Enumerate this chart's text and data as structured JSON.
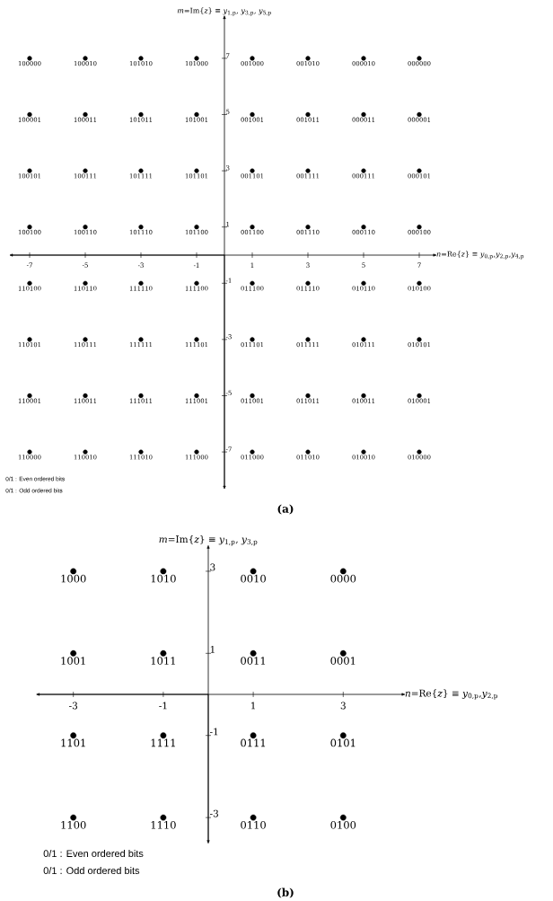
{
  "chart_data": [
    {
      "type": "scatter",
      "title": "(a)",
      "xlabel": "*n*=Re{*z*} ≡ *y*$_{0,p}$,*y*$_{2,p}$,*y*$_{4,p}$",
      "ylabel": "*m*=Im{*z*} ≡ *y*$_{1,p}$, *y*$_{3,p}$, *y*$_{5,p}$",
      "color": "#000000",
      "marker": "circle",
      "xlim": [
        -7.6,
        7.5
      ],
      "ylim": [
        -8.2,
        8.4
      ],
      "xticks": [
        -7,
        -5,
        -3,
        -1,
        1,
        3,
        5,
        7
      ],
      "yticks": [
        -7,
        -5,
        -3,
        -1,
        1,
        3,
        5,
        7
      ],
      "x": [
        -7,
        -5,
        -3,
        -1,
        1,
        3,
        5,
        7,
        -7,
        -5,
        -3,
        -1,
        1,
        3,
        5,
        7,
        -7,
        -5,
        -3,
        -1,
        1,
        3,
        5,
        7,
        -7,
        -5,
        -3,
        -1,
        1,
        3,
        5,
        7,
        -7,
        -5,
        -3,
        -1,
        1,
        3,
        5,
        7,
        -7,
        -5,
        -3,
        -1,
        1,
        3,
        5,
        7,
        -7,
        -5,
        -3,
        -1,
        1,
        3,
        5,
        7,
        -7,
        -5,
        -3,
        -1,
        1,
        3,
        5,
        7
      ],
      "values": [
        7,
        7,
        7,
        7,
        7,
        7,
        7,
        7,
        5,
        5,
        5,
        5,
        5,
        5,
        5,
        5,
        3,
        3,
        3,
        3,
        3,
        3,
        3,
        3,
        1,
        1,
        1,
        1,
        1,
        1,
        1,
        1,
        -1,
        -1,
        -1,
        -1,
        -1,
        -1,
        -1,
        -1,
        -3,
        -3,
        -3,
        -3,
        -3,
        -3,
        -3,
        -3,
        -5,
        -5,
        -5,
        -5,
        -5,
        -5,
        -5,
        -5,
        -7,
        -7,
        -7,
        -7,
        -7,
        -7,
        -7,
        -7
      ],
      "annotations": [
        {
          "text": "100000",
          "x": -7,
          "y": 7
        },
        {
          "text": "100010",
          "x": -5,
          "y": 7
        },
        {
          "text": "101010",
          "x": -3,
          "y": 7
        },
        {
          "text": "101000",
          "x": -1,
          "y": 7
        },
        {
          "text": "001000",
          "x": 1,
          "y": 7
        },
        {
          "text": "001010",
          "x": 3,
          "y": 7
        },
        {
          "text": "000010",
          "x": 5,
          "y": 7
        },
        {
          "text": "000000",
          "x": 7,
          "y": 7
        },
        {
          "text": "100001",
          "x": -7,
          "y": 5
        },
        {
          "text": "100011",
          "x": -5,
          "y": 5
        },
        {
          "text": "101011",
          "x": -3,
          "y": 5
        },
        {
          "text": "101001",
          "x": -1,
          "y": 5
        },
        {
          "text": "001001",
          "x": 1,
          "y": 5
        },
        {
          "text": "001011",
          "x": 3,
          "y": 5
        },
        {
          "text": "000011",
          "x": 5,
          "y": 5
        },
        {
          "text": "000001",
          "x": 7,
          "y": 5
        },
        {
          "text": "100101",
          "x": -7,
          "y": 3
        },
        {
          "text": "100111",
          "x": -5,
          "y": 3
        },
        {
          "text": "101111",
          "x": -3,
          "y": 3
        },
        {
          "text": "101101",
          "x": -1,
          "y": 3
        },
        {
          "text": "001101",
          "x": 1,
          "y": 3
        },
        {
          "text": "001111",
          "x": 3,
          "y": 3
        },
        {
          "text": "000111",
          "x": 5,
          "y": 3
        },
        {
          "text": "000101",
          "x": 7,
          "y": 3
        },
        {
          "text": "100100",
          "x": -7,
          "y": 1
        },
        {
          "text": "100110",
          "x": -5,
          "y": 1
        },
        {
          "text": "101110",
          "x": -3,
          "y": 1
        },
        {
          "text": "101100",
          "x": -1,
          "y": 1
        },
        {
          "text": "001100",
          "x": 1,
          "y": 1
        },
        {
          "text": "001110",
          "x": 3,
          "y": 1
        },
        {
          "text": "000110",
          "x": 5,
          "y": 1
        },
        {
          "text": "000100",
          "x": 7,
          "y": 1
        },
        {
          "text": "110100",
          "x": -7,
          "y": -1
        },
        {
          "text": "110110",
          "x": -5,
          "y": -1
        },
        {
          "text": "111110",
          "x": -3,
          "y": -1
        },
        {
          "text": "111100",
          "x": -1,
          "y": -1
        },
        {
          "text": "011100",
          "x": 1,
          "y": -1
        },
        {
          "text": "011110",
          "x": 3,
          "y": -1
        },
        {
          "text": "010110",
          "x": 5,
          "y": -1
        },
        {
          "text": "010100",
          "x": 7,
          "y": -1
        },
        {
          "text": "110101",
          "x": -7,
          "y": -3
        },
        {
          "text": "110111",
          "x": -5,
          "y": -3
        },
        {
          "text": "111111",
          "x": -3,
          "y": -3
        },
        {
          "text": "111101",
          "x": -1,
          "y": -3
        },
        {
          "text": "011101",
          "x": 1,
          "y": -3
        },
        {
          "text": "011111",
          "x": 3,
          "y": -3
        },
        {
          "text": "010111",
          "x": 5,
          "y": -3
        },
        {
          "text": "010101",
          "x": 7,
          "y": -3
        },
        {
          "text": "110001",
          "x": -7,
          "y": -5
        },
        {
          "text": "110011",
          "x": -5,
          "y": -5
        },
        {
          "text": "111011",
          "x": -3,
          "y": -5
        },
        {
          "text": "111001",
          "x": -1,
          "y": -5
        },
        {
          "text": "011001",
          "x": 1,
          "y": -5
        },
        {
          "text": "011011",
          "x": 3,
          "y": -5
        },
        {
          "text": "010011",
          "x": 5,
          "y": -5
        },
        {
          "text": "010001",
          "x": 7,
          "y": -5
        },
        {
          "text": "110000",
          "x": -7,
          "y": -7
        },
        {
          "text": "110010",
          "x": -5,
          "y": -7
        },
        {
          "text": "111010",
          "x": -3,
          "y": -7
        },
        {
          "text": "111000",
          "x": -1,
          "y": -7
        },
        {
          "text": "011000",
          "x": 1,
          "y": -7
        },
        {
          "text": "011010",
          "x": 3,
          "y": -7
        },
        {
          "text": "010010",
          "x": 5,
          "y": -7
        },
        {
          "text": "010000",
          "x": 7,
          "y": -7
        },
        "0/1 : Even ordered bits",
        "0/1 : Odd ordered bits"
      ]
    },
    {
      "type": "scatter",
      "title": "(b)",
      "xlabel": "*n*=Re{*z*} ≡ *y*$_{0,p}$,*y*$_{2,p}$",
      "ylabel": "*m*=Im{*z*} ≡ *y*$_{1,p}$, *y*$_{3,p}$",
      "color": "#000000",
      "marker": "circle",
      "xlim": [
        -3.75,
        4.3
      ],
      "ylim": [
        -3.55,
        3.55
      ],
      "xticks": [
        -3,
        -1,
        1,
        3
      ],
      "yticks": [
        -3,
        -1,
        1,
        3
      ],
      "x": [
        -3,
        -1,
        1,
        3,
        -3,
        -1,
        1,
        3,
        -3,
        -1,
        1,
        3,
        -3,
        -1,
        1,
        3
      ],
      "values": [
        3,
        3,
        3,
        3,
        1,
        1,
        1,
        1,
        -1,
        -1,
        -1,
        -1,
        -3,
        -3,
        -3,
        -3
      ],
      "annotations": [
        {
          "text": "1000",
          "x": -3,
          "y": 3
        },
        {
          "text": "1010",
          "x": -1,
          "y": 3
        },
        {
          "text": "0010",
          "x": 1,
          "y": 3
        },
        {
          "text": "0000",
          "x": 3,
          "y": 3
        },
        {
          "text": "1001",
          "x": -3,
          "y": 1
        },
        {
          "text": "1011",
          "x": -1,
          "y": 1
        },
        {
          "text": "0011",
          "x": 1,
          "y": 1
        },
        {
          "text": "0001",
          "x": 3,
          "y": 1
        },
        {
          "text": "1101",
          "x": -3,
          "y": -1
        },
        {
          "text": "1111",
          "x": -1,
          "y": -1
        },
        {
          "text": "0111",
          "x": 1,
          "y": -1
        },
        {
          "text": "0101",
          "x": 3,
          "y": -1
        },
        {
          "text": "1100",
          "x": -3,
          "y": -3
        },
        {
          "text": "1110",
          "x": -1,
          "y": -3
        },
        {
          "text": "0110",
          "x": 1,
          "y": -3
        },
        {
          "text": "0100",
          "x": 3,
          "y": -3
        },
        "0/1 : Even ordered bits",
        "0/1 : Odd ordered bits"
      ]
    }
  ]
}
